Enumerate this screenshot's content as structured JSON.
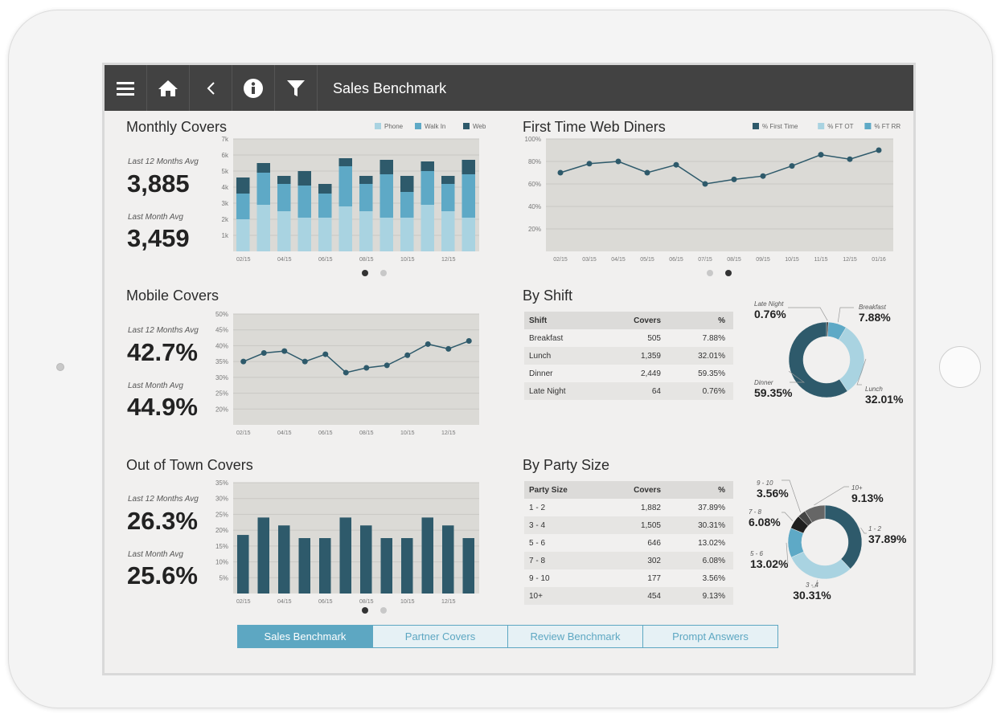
{
  "header": {
    "title": "Sales Benchmark",
    "icons": [
      "menu-icon",
      "home-icon",
      "back-icon",
      "info-icon",
      "filter-icon"
    ]
  },
  "colors": {
    "dark": "#2e5a6b",
    "mid": "#5ea9c6",
    "light": "#a9d3e1",
    "plot_bg": "#dbdad6",
    "gray": "#c8c8c8",
    "active_dot": "#333333"
  },
  "monthly": {
    "title": "Monthly Covers",
    "stat1_label": "Last 12 Months Avg",
    "stat1_value": "3,885",
    "stat2_label": "Last Month Avg",
    "stat2_value": "3,459",
    "pager": {
      "active": 0,
      "count": 2
    }
  },
  "first_time": {
    "title": "First Time Web Diners",
    "pager": {
      "active": 1,
      "count": 2
    }
  },
  "mobile": {
    "title": "Mobile Covers",
    "stat1_label": "Last 12 Months Avg",
    "stat1_value": "42.7%",
    "stat2_label": "Last Month Avg",
    "stat2_value": "44.9%"
  },
  "out_of_town": {
    "title": "Out of Town Covers",
    "stat1_label": "Last 12 Months Avg",
    "stat1_value": "26.3%",
    "stat2_label": "Last Month Avg",
    "stat2_value": "25.6%",
    "pager": {
      "active": 0,
      "count": 2
    }
  },
  "by_shift": {
    "title": "By Shift",
    "columns": [
      "Shift",
      "Covers",
      "%"
    ],
    "rows": [
      [
        "Breakfast",
        "505",
        "7.88%"
      ],
      [
        "Lunch",
        "1,359",
        "32.01%"
      ],
      [
        "Dinner",
        "2,449",
        "59.35%"
      ],
      [
        "Late Night",
        "64",
        "0.76%"
      ]
    ]
  },
  "by_party": {
    "title": "By Party Size",
    "columns": [
      "Party Size",
      "Covers",
      "%"
    ],
    "rows": [
      [
        "1 - 2",
        "1,882",
        "37.89%"
      ],
      [
        "3 - 4",
        "1,505",
        "30.31%"
      ],
      [
        "5 - 6",
        "646",
        "13.02%"
      ],
      [
        "7 - 8",
        "302",
        "6.08%"
      ],
      [
        "9 - 10",
        "177",
        "3.56%"
      ],
      [
        "10+",
        "454",
        "9.13%"
      ]
    ]
  },
  "tabs": [
    {
      "label": "Sales Benchmark",
      "active": true
    },
    {
      "label": "Partner Covers",
      "active": false
    },
    {
      "label": "Review Benchmark",
      "active": false
    },
    {
      "label": "Prompt Answers",
      "active": false
    }
  ],
  "chart_data": [
    {
      "id": "monthly_covers",
      "type": "bar",
      "stacked": true,
      "categories": [
        "02/15",
        "03/15",
        "04/15",
        "05/15",
        "06/15",
        "07/15",
        "08/15",
        "09/15",
        "10/15",
        "11/15",
        "12/15",
        "01/16"
      ],
      "tick_labels": [
        "02/15",
        "",
        "04/15",
        "",
        "06/15",
        "",
        "08/15",
        "",
        "10/15",
        "",
        "12/15",
        ""
      ],
      "series": [
        {
          "name": "Phone",
          "values": [
            2000,
            2900,
            2500,
            2100,
            2100,
            2800,
            2500,
            2100,
            2100,
            2900,
            2500,
            2100
          ],
          "color": "#a9d3e1"
        },
        {
          "name": "Walk In",
          "values": [
            1600,
            2000,
            1700,
            2000,
            1500,
            2500,
            1700,
            2700,
            1600,
            2100,
            1700,
            2700
          ],
          "color": "#5ea9c6"
        },
        {
          "name": "Web",
          "values": [
            1000,
            600,
            500,
            900,
            600,
            500,
            500,
            900,
            1000,
            600,
            500,
            900
          ],
          "color": "#2e5a6b"
        }
      ],
      "yticks": [
        "1k",
        "2k",
        "3k",
        "4k",
        "5k",
        "6k",
        "7k"
      ],
      "ylim": [
        0,
        7000
      ],
      "grid": true,
      "legend": "top-right"
    },
    {
      "id": "first_time_web",
      "type": "line",
      "x": [
        "02/15",
        "03/15",
        "04/15",
        "05/15",
        "06/15",
        "07/15",
        "08/15",
        "09/15",
        "10/15",
        "11/15",
        "12/15",
        "01/16"
      ],
      "series": [
        {
          "name": "% First Time",
          "values": [
            70,
            78,
            80,
            70,
            77,
            60,
            64,
            67,
            76,
            86,
            82,
            90
          ],
          "color": "#2e5a6b"
        }
      ],
      "legend_entries": [
        {
          "name": "% First Time",
          "color": "#2e5a6b"
        },
        {
          "name": "% FT OT",
          "color": "#a9d3e1"
        },
        {
          "name": "% FT RR",
          "color": "#5ea9c6"
        }
      ],
      "yticks": [
        "20%",
        "40%",
        "60%",
        "80%",
        "100%"
      ],
      "ylim": [
        0,
        100
      ],
      "grid": true,
      "legend": "top-right"
    },
    {
      "id": "mobile_covers",
      "type": "line",
      "x": [
        "02/15",
        "03/15",
        "04/15",
        "05/15",
        "06/15",
        "07/15",
        "08/15",
        "09/15",
        "10/15",
        "11/15",
        "12/15",
        "01/16"
      ],
      "tick_labels": [
        "02/15",
        "",
        "04/15",
        "",
        "06/15",
        "",
        "08/15",
        "",
        "10/15",
        "",
        "12/15",
        ""
      ],
      "series": [
        {
          "values": [
            35,
            37.7,
            38.3,
            35,
            37.3,
            31.5,
            33,
            33.8,
            37,
            40.5,
            39,
            41.5
          ],
          "color": "#2e5a6b"
        }
      ],
      "yticks": [
        "20%",
        "25%",
        "30%",
        "35%",
        "40%",
        "45%",
        "50%"
      ],
      "ylim": [
        15,
        50
      ],
      "grid": true
    },
    {
      "id": "out_of_town_covers",
      "type": "bar",
      "categories": [
        "02/15",
        "03/15",
        "04/15",
        "05/15",
        "06/15",
        "07/15",
        "08/15",
        "09/15",
        "10/15",
        "11/15",
        "12/15",
        "01/16"
      ],
      "tick_labels": [
        "02/15",
        "",
        "04/15",
        "",
        "06/15",
        "",
        "08/15",
        "",
        "10/15",
        "",
        "12/15",
        ""
      ],
      "values": [
        18.5,
        24,
        21.5,
        17.5,
        17.5,
        24,
        21.5,
        17.5,
        17.5,
        24,
        21.5,
        17.5
      ],
      "yticks": [
        "5%",
        "10%",
        "15%",
        "20%",
        "25%",
        "30%",
        "35%"
      ],
      "ylim": [
        0,
        35
      ],
      "grid": true
    },
    {
      "id": "by_shift_donut",
      "type": "pie",
      "donut": true,
      "slices": [
        {
          "label": "Late Night",
          "value": 0.76,
          "display": "0.76%",
          "color": "#1f1f1f"
        },
        {
          "label": "Breakfast",
          "value": 7.88,
          "display": "7.88%",
          "color": "#5ea9c6"
        },
        {
          "label": "Lunch",
          "value": 32.01,
          "display": "32.01%",
          "color": "#a9d3e1"
        },
        {
          "label": "Dinner",
          "value": 59.35,
          "display": "59.35%",
          "color": "#2e5a6b"
        }
      ]
    },
    {
      "id": "by_party_donut",
      "type": "pie",
      "donut": true,
      "slices": [
        {
          "label": "1 - 2",
          "value": 37.89,
          "display": "37.89%",
          "color": "#2e5a6b"
        },
        {
          "label": "3 - 4",
          "value": 30.31,
          "display": "30.31%",
          "color": "#a9d3e1"
        },
        {
          "label": "5 - 6",
          "value": 13.02,
          "display": "13.02%",
          "color": "#5ea9c6"
        },
        {
          "label": "7 - 8",
          "value": 6.08,
          "display": "6.08%",
          "color": "#1f1f1f"
        },
        {
          "label": "9 - 10",
          "value": 3.56,
          "display": "3.56%",
          "color": "#444444"
        },
        {
          "label": "10+",
          "value": 9.13,
          "display": "9.13%",
          "color": "#666666"
        }
      ]
    }
  ]
}
